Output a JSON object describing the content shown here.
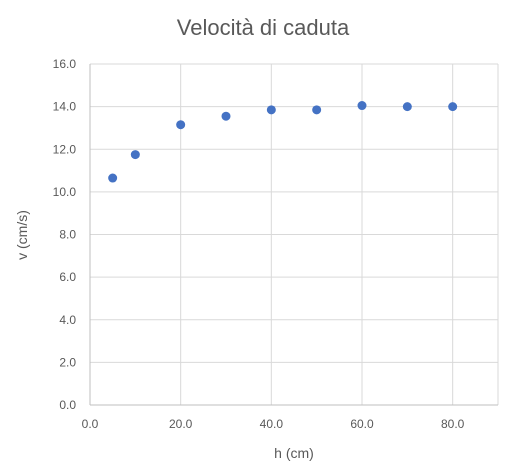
{
  "chart_data": {
    "type": "scatter",
    "title": "Velocità di caduta",
    "xlabel": "h (cm)",
    "ylabel": "v (cm/s)",
    "xlim": [
      0,
      90
    ],
    "ylim": [
      0,
      16
    ],
    "x_ticks": [
      0,
      20,
      40,
      60,
      80
    ],
    "x_tick_labels": [
      "0.0",
      "20.0",
      "40.0",
      "60.0",
      "80.0"
    ],
    "y_ticks": [
      0,
      2,
      4,
      6,
      8,
      10,
      12,
      14,
      16
    ],
    "y_tick_labels": [
      "0.0",
      "2.0",
      "4.0",
      "6.0",
      "8.0",
      "10.0",
      "12.0",
      "14.0",
      "16.0"
    ],
    "grid": true,
    "legend": "none",
    "marker_color": "#4472C4",
    "points": [
      {
        "x": 5,
        "y": 10.65
      },
      {
        "x": 10,
        "y": 11.75
      },
      {
        "x": 20,
        "y": 13.15
      },
      {
        "x": 30,
        "y": 13.55
      },
      {
        "x": 40,
        "y": 13.85
      },
      {
        "x": 50,
        "y": 13.85
      },
      {
        "x": 60,
        "y": 14.05
      },
      {
        "x": 70,
        "y": 14.0
      },
      {
        "x": 80,
        "y": 14.0
      }
    ]
  }
}
